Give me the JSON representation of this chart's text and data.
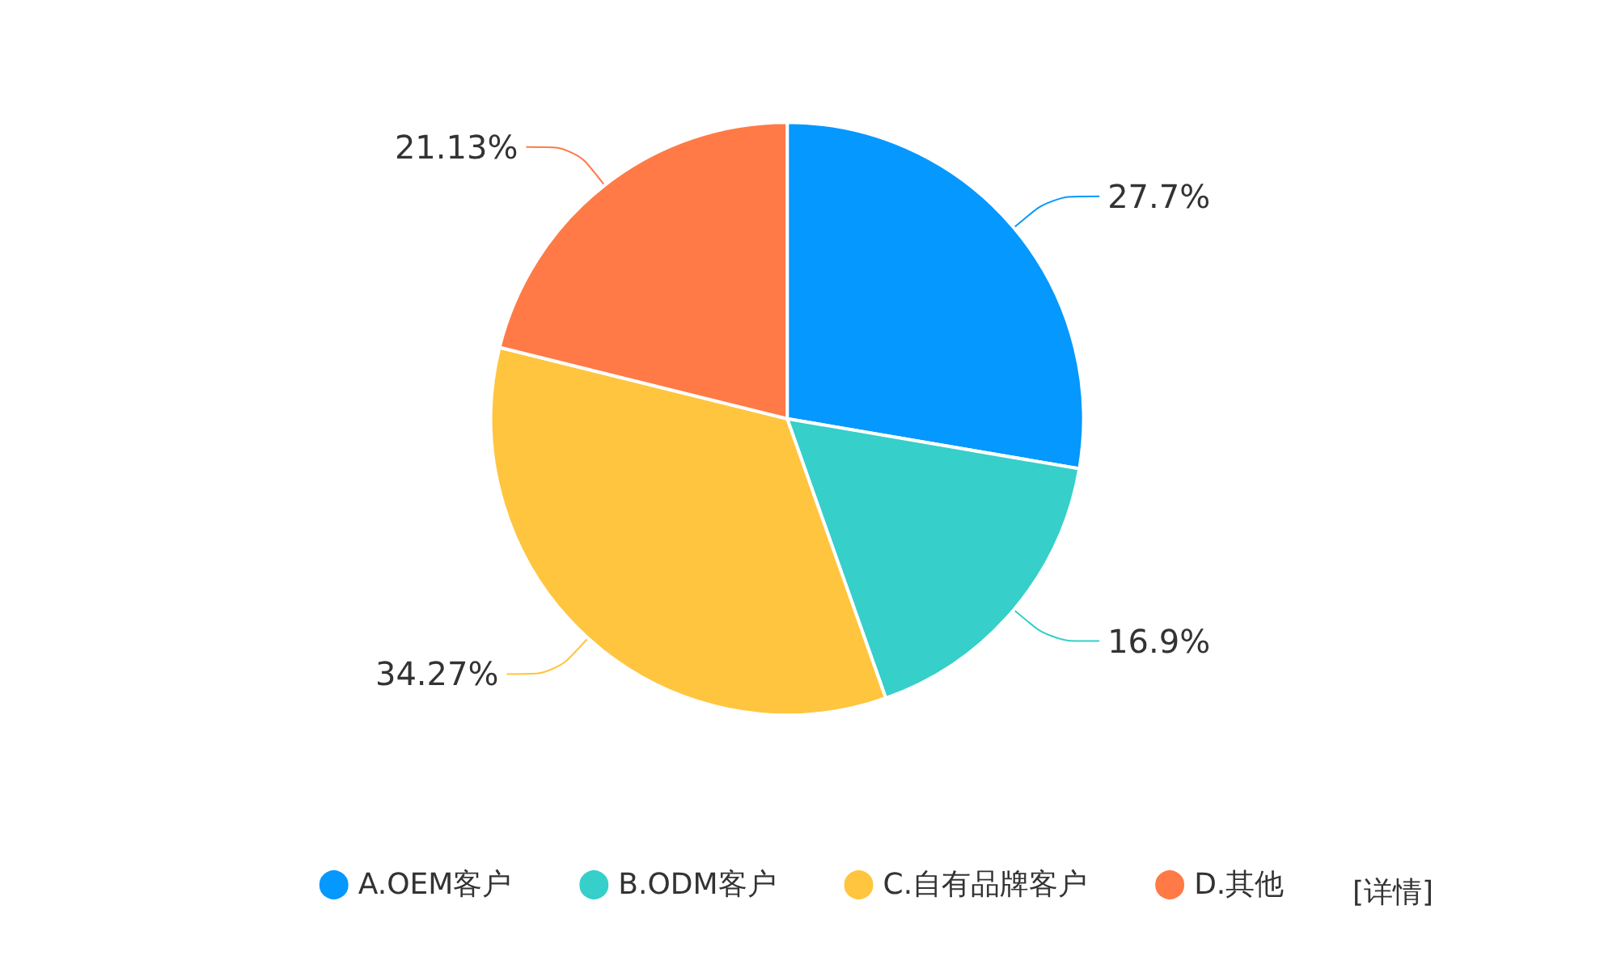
{
  "chart_data": {
    "type": "pie",
    "categories": [
      "A.OEM客户",
      "B.ODM客户",
      "C.自有品牌客户",
      "D.其他"
    ],
    "values": [
      27.7,
      16.9,
      34.27,
      21.13
    ],
    "value_labels": [
      "27.7%",
      "16.9%",
      "34.27%",
      "21.13%"
    ],
    "colors": [
      "#0598fe",
      "#36cfca",
      "#ffc53e",
      "#ff7a46"
    ],
    "legend": "bottom",
    "annotations": [
      "[详情]"
    ]
  }
}
